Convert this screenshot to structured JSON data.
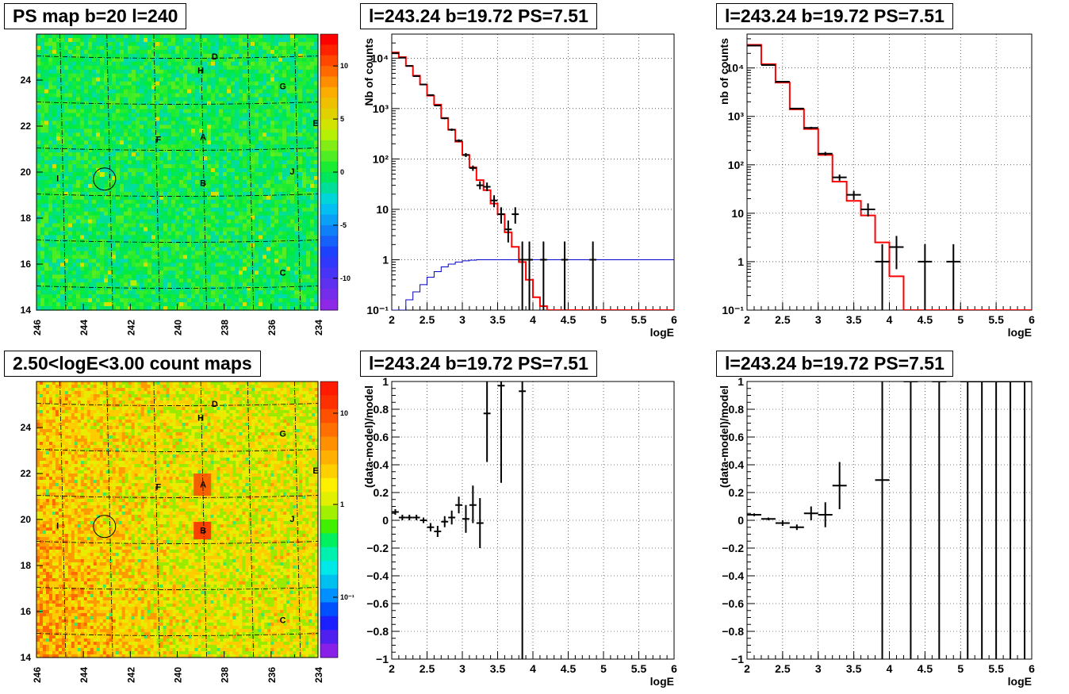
{
  "colors": {
    "model_line": "#ff0000",
    "aux_line": "#0000cc",
    "data": "#000000",
    "grid": "#000000"
  },
  "maps": [
    {
      "title": "PS map b=20 l=240",
      "kind": "ps",
      "x_range": [
        246,
        234
      ],
      "y_range": [
        14,
        26
      ],
      "x_ticks": [
        "246",
        "244",
        "242",
        "240",
        "238",
        "236",
        "234"
      ],
      "y_ticks": [
        "16",
        "18",
        "20",
        "22",
        "24"
      ],
      "z_ticks": [
        "10",
        "5",
        "0",
        "-5",
        "-10"
      ],
      "z_range": [
        -13,
        13
      ],
      "circle": {
        "l": 243.1,
        "b": 19.7
      },
      "labels": [
        {
          "t": "D",
          "l": 238.4,
          "b": 24.9
        },
        {
          "t": "H",
          "l": 239.0,
          "b": 24.3
        },
        {
          "t": "G",
          "l": 235.5,
          "b": 23.6
        },
        {
          "t": "E",
          "l": 234.1,
          "b": 22.0
        },
        {
          "t": "F",
          "l": 240.8,
          "b": 21.3
        },
        {
          "t": "A",
          "l": 238.9,
          "b": 21.4
        },
        {
          "t": "I",
          "l": 245.1,
          "b": 19.6
        },
        {
          "t": "J",
          "l": 235.1,
          "b": 19.9
        },
        {
          "t": "B",
          "l": 238.9,
          "b": 19.4
        },
        {
          "t": "C",
          "l": 235.5,
          "b": 15.5
        }
      ]
    },
    {
      "title": "2.50<logE<3.00 count maps",
      "kind": "count",
      "x_range": [
        246,
        234
      ],
      "y_range": [
        14,
        26
      ],
      "x_ticks": [
        "246",
        "244",
        "242",
        "240",
        "238",
        "236",
        "234"
      ],
      "y_ticks": [
        "16",
        "18",
        "20",
        "22",
        "24"
      ],
      "z_ticks": [
        "10",
        "1",
        "10⁻¹"
      ],
      "circle": {
        "l": 243.1,
        "b": 19.7
      },
      "labels": [
        {
          "t": "D",
          "l": 238.4,
          "b": 24.9
        },
        {
          "t": "H",
          "l": 239.0,
          "b": 24.3
        },
        {
          "t": "G",
          "l": 235.5,
          "b": 23.6
        },
        {
          "t": "E",
          "l": 234.1,
          "b": 22.0
        },
        {
          "t": "F",
          "l": 240.8,
          "b": 21.3
        },
        {
          "t": "A",
          "l": 238.9,
          "b": 21.4
        },
        {
          "t": "I",
          "l": 245.1,
          "b": 19.6
        },
        {
          "t": "J",
          "l": 235.1,
          "b": 19.9
        },
        {
          "t": "B",
          "l": 238.9,
          "b": 19.4
        },
        {
          "t": "C",
          "l": 235.5,
          "b": 15.5
        }
      ]
    }
  ],
  "chart_data": [
    {
      "type": "line",
      "title": "l=243.24 b=19.72 PS=7.51",
      "xlabel": "logE",
      "ylabel": "Nb of counts",
      "xlim": [
        2,
        6
      ],
      "ylim": [
        0.1,
        30000
      ],
      "yscale": "log",
      "grid": true,
      "x_ticks": [
        "2",
        "2.5",
        "3",
        "3.5",
        "4",
        "4.5",
        "5",
        "5.5",
        "6"
      ],
      "y_ticks": [
        {
          "v": 10000,
          "t": "10⁴"
        },
        {
          "v": 1000,
          "t": "10³"
        },
        {
          "v": 100,
          "t": "10²"
        },
        {
          "v": 10,
          "t": "10"
        },
        {
          "v": 1,
          "t": "1"
        },
        {
          "v": 0.1,
          "t": "10⁻¹"
        }
      ],
      "model": {
        "edges": [
          2.0,
          2.1,
          2.2,
          2.3,
          2.4,
          2.5,
          2.6,
          2.7,
          2.8,
          2.9,
          3.0,
          3.1,
          3.2,
          3.3,
          3.4,
          3.5,
          3.6,
          3.7,
          3.8,
          3.9,
          4.0,
          4.1,
          4.2,
          6.0
        ],
        "values": [
          13000,
          10500,
          7000,
          4500,
          3000,
          1800,
          1200,
          650,
          380,
          220,
          120,
          68,
          38,
          24,
          13,
          8,
          3.5,
          1.8,
          0.9,
          0.4,
          0.18,
          0.12,
          0.1
        ]
      },
      "aux": {
        "edges": [
          2.0,
          2.1,
          2.2,
          2.3,
          2.4,
          2.5,
          2.6,
          2.7,
          2.8,
          2.9,
          3.0,
          3.1,
          3.2,
          3.4,
          6.0
        ],
        "values": [
          0.06,
          0.1,
          0.16,
          0.23,
          0.32,
          0.45,
          0.58,
          0.72,
          0.82,
          0.9,
          0.95,
          0.98,
          1.0,
          1.0
        ]
      },
      "points": [
        {
          "x": 2.05,
          "y": 12500,
          "lo": 12300,
          "hi": 12700,
          "xe": 0.05
        },
        {
          "x": 2.15,
          "y": 10200,
          "lo": 10000,
          "hi": 10400,
          "xe": 0.05
        },
        {
          "x": 2.25,
          "y": 7000,
          "lo": 6900,
          "hi": 7100,
          "xe": 0.05
        },
        {
          "x": 2.35,
          "y": 4400,
          "lo": 4330,
          "hi": 4470,
          "xe": 0.05
        },
        {
          "x": 2.45,
          "y": 3000,
          "lo": 2950,
          "hi": 3050,
          "xe": 0.05
        },
        {
          "x": 2.55,
          "y": 1850,
          "lo": 1810,
          "hi": 1890,
          "xe": 0.05
        },
        {
          "x": 2.65,
          "y": 1150,
          "lo": 1120,
          "hi": 1180,
          "xe": 0.05
        },
        {
          "x": 2.75,
          "y": 640,
          "lo": 615,
          "hi": 665,
          "xe": 0.05
        },
        {
          "x": 2.85,
          "y": 380,
          "lo": 360,
          "hi": 400,
          "xe": 0.05
        },
        {
          "x": 2.95,
          "y": 230,
          "lo": 215,
          "hi": 245,
          "xe": 0.05
        },
        {
          "x": 3.05,
          "y": 120,
          "lo": 109,
          "hi": 131,
          "xe": 0.05
        },
        {
          "x": 3.15,
          "y": 66,
          "lo": 58,
          "hi": 74,
          "xe": 0.05
        },
        {
          "x": 3.25,
          "y": 30,
          "lo": 25,
          "hi": 36,
          "xe": 0.05
        },
        {
          "x": 3.35,
          "y": 28,
          "lo": 23,
          "hi": 34,
          "xe": 0.05
        },
        {
          "x": 3.45,
          "y": 15,
          "lo": 11,
          "hi": 19,
          "xe": 0.05
        },
        {
          "x": 3.55,
          "y": 8,
          "lo": 5.2,
          "hi": 11,
          "xe": 0.05
        },
        {
          "x": 3.65,
          "y": 4,
          "lo": 2.2,
          "hi": 6,
          "xe": 0.05
        },
        {
          "x": 3.75,
          "y": 8,
          "lo": 5.2,
          "hi": 11,
          "xe": 0.05
        },
        {
          "x": 3.85,
          "y": 1,
          "lo": 0.1,
          "hi": 2.3,
          "xe": 0.05
        },
        {
          "x": 3.95,
          "y": 1,
          "lo": 0.1,
          "hi": 2.3,
          "xe": 0.05
        },
        {
          "x": 4.15,
          "y": 1,
          "lo": 0.1,
          "hi": 2.3,
          "xe": 0.05
        },
        {
          "x": 4.45,
          "y": 1,
          "lo": 0.1,
          "hi": 2.3,
          "xe": 0.05
        },
        {
          "x": 4.85,
          "y": 1,
          "lo": 0.1,
          "hi": 2.3,
          "xe": 0.05
        }
      ]
    },
    {
      "type": "line",
      "title": "l=243.24 b=19.72 PS=7.51",
      "xlabel": "logE",
      "ylabel": "nb of counts",
      "xlim": [
        2,
        6
      ],
      "ylim": [
        0.1,
        50000
      ],
      "yscale": "log",
      "grid": true,
      "x_ticks": [
        "2",
        "2.5",
        "3",
        "3.5",
        "4",
        "4.5",
        "5",
        "5.5",
        "6"
      ],
      "y_ticks": [
        {
          "v": 10000,
          "t": "10⁴"
        },
        {
          "v": 1000,
          "t": "10³"
        },
        {
          "v": 100,
          "t": "10²"
        },
        {
          "v": 10,
          "t": "10"
        },
        {
          "v": 1,
          "t": "1"
        },
        {
          "v": 0.1,
          "t": "10⁻¹"
        }
      ],
      "model": {
        "edges": [
          2.0,
          2.2,
          2.4,
          2.6,
          2.8,
          3.0,
          3.2,
          3.4,
          3.6,
          3.8,
          4.0,
          4.2,
          6.0
        ],
        "values": [
          30000,
          12000,
          5000,
          1400,
          550,
          160,
          45,
          18,
          9,
          2.5,
          0.5,
          0.1
        ]
      },
      "points": [
        {
          "x": 2.1,
          "y": 29000,
          "lo": 28700,
          "hi": 29300,
          "xe": 0.1
        },
        {
          "x": 2.3,
          "y": 11500,
          "lo": 11300,
          "hi": 11700,
          "xe": 0.1
        },
        {
          "x": 2.5,
          "y": 5200,
          "lo": 5080,
          "hi": 5320,
          "xe": 0.1
        },
        {
          "x": 2.7,
          "y": 1450,
          "lo": 1400,
          "hi": 1500,
          "xe": 0.1
        },
        {
          "x": 2.9,
          "y": 580,
          "lo": 550,
          "hi": 610,
          "xe": 0.1
        },
        {
          "x": 3.1,
          "y": 170,
          "lo": 155,
          "hi": 185,
          "xe": 0.1
        },
        {
          "x": 3.3,
          "y": 55,
          "lo": 47,
          "hi": 63,
          "xe": 0.1
        },
        {
          "x": 3.5,
          "y": 24,
          "lo": 19,
          "hi": 29,
          "xe": 0.1
        },
        {
          "x": 3.7,
          "y": 12,
          "lo": 8.6,
          "hi": 16,
          "xe": 0.1
        },
        {
          "x": 3.9,
          "y": 1,
          "lo": 0.1,
          "hi": 2.3,
          "xe": 0.1
        },
        {
          "x": 4.1,
          "y": 2,
          "lo": 0.7,
          "hi": 3.4,
          "xe": 0.1
        },
        {
          "x": 4.5,
          "y": 1,
          "lo": 0.1,
          "hi": 2.3,
          "xe": 0.1
        },
        {
          "x": 4.9,
          "y": 1,
          "lo": 0.1,
          "hi": 2.3,
          "xe": 0.1
        }
      ]
    },
    {
      "type": "scatter",
      "title": "l=243.24 b=19.72 PS=7.51",
      "xlabel": "logE",
      "ylabel": "(data-model)/model",
      "xlim": [
        2,
        6
      ],
      "ylim": [
        -1,
        1
      ],
      "yscale": "linear",
      "grid": true,
      "x_ticks": [
        "2",
        "2.5",
        "3",
        "3.5",
        "4",
        "4.5",
        "5",
        "5.5",
        "6"
      ],
      "y_ticks": [
        {
          "v": 1,
          "t": "1"
        },
        {
          "v": 0.8,
          "t": "0.8"
        },
        {
          "v": 0.6,
          "t": "0.6"
        },
        {
          "v": 0.4,
          "t": "0.4"
        },
        {
          "v": 0.2,
          "t": "0.2"
        },
        {
          "v": 0,
          "t": "0"
        },
        {
          "v": -0.2,
          "t": "−0.2"
        },
        {
          "v": -0.4,
          "t": "−0.4"
        },
        {
          "v": -0.6,
          "t": "−0.6"
        },
        {
          "v": -0.8,
          "t": "−0.8"
        },
        {
          "v": -1,
          "t": "−1"
        }
      ],
      "points": [
        {
          "x": 2.05,
          "y": 0.06,
          "lo": 0.04,
          "hi": 0.08,
          "xe": 0.05
        },
        {
          "x": 2.15,
          "y": 0.02,
          "lo": 0.0,
          "hi": 0.04,
          "xe": 0.05
        },
        {
          "x": 2.25,
          "y": 0.02,
          "lo": 0.0,
          "hi": 0.04,
          "xe": 0.05
        },
        {
          "x": 2.35,
          "y": 0.02,
          "lo": 0.0,
          "hi": 0.04,
          "xe": 0.05
        },
        {
          "x": 2.45,
          "y": 0.0,
          "lo": -0.02,
          "hi": 0.02,
          "xe": 0.05
        },
        {
          "x": 2.55,
          "y": -0.05,
          "lo": -0.08,
          "hi": -0.02,
          "xe": 0.05
        },
        {
          "x": 2.65,
          "y": -0.08,
          "lo": -0.12,
          "hi": -0.04,
          "xe": 0.05
        },
        {
          "x": 2.75,
          "y": -0.01,
          "lo": -0.05,
          "hi": 0.03,
          "xe": 0.05
        },
        {
          "x": 2.85,
          "y": 0.02,
          "lo": -0.03,
          "hi": 0.07,
          "xe": 0.05
        },
        {
          "x": 2.95,
          "y": 0.11,
          "lo": 0.05,
          "hi": 0.17,
          "xe": 0.05
        },
        {
          "x": 3.05,
          "y": 0.01,
          "lo": -0.09,
          "hi": 0.11,
          "xe": 0.05
        },
        {
          "x": 3.15,
          "y": 0.11,
          "lo": -0.02,
          "hi": 0.25,
          "xe": 0.05
        },
        {
          "x": 3.25,
          "y": -0.02,
          "lo": -0.2,
          "hi": 0.16,
          "xe": 0.05
        },
        {
          "x": 3.35,
          "y": 0.77,
          "lo": 0.42,
          "hi": 1.0,
          "xe": 0.05
        },
        {
          "x": 3.55,
          "y": 0.97,
          "lo": 0.27,
          "hi": 1.0,
          "xe": 0.05
        },
        {
          "x": 3.85,
          "y": 0.93,
          "lo": -1.0,
          "hi": 1.0,
          "xe": 0.05
        }
      ]
    },
    {
      "type": "scatter",
      "title": "l=243.24 b=19.72 PS=7.51",
      "xlabel": "logE",
      "ylabel": "(data-model)/model",
      "xlim": [
        2,
        6
      ],
      "ylim": [
        -1,
        1
      ],
      "yscale": "linear",
      "grid": true,
      "x_ticks": [
        "2",
        "2.5",
        "3",
        "3.5",
        "4",
        "4.5",
        "5",
        "5.5",
        "6"
      ],
      "y_ticks": [
        {
          "v": 1,
          "t": "1"
        },
        {
          "v": 0.8,
          "t": "0.8"
        },
        {
          "v": 0.6,
          "t": "0.6"
        },
        {
          "v": 0.4,
          "t": "0.4"
        },
        {
          "v": 0.2,
          "t": "0.2"
        },
        {
          "v": 0,
          "t": "0"
        },
        {
          "v": -0.2,
          "t": "−0.2"
        },
        {
          "v": -0.4,
          "t": "−0.4"
        },
        {
          "v": -0.6,
          "t": "−0.6"
        },
        {
          "v": -0.8,
          "t": "−0.8"
        },
        {
          "v": -1,
          "t": "−1"
        }
      ],
      "points": [
        {
          "x": 2.1,
          "y": 0.04,
          "lo": 0.03,
          "hi": 0.05,
          "xe": 0.1
        },
        {
          "x": 2.3,
          "y": 0.01,
          "lo": 0.0,
          "hi": 0.02,
          "xe": 0.1
        },
        {
          "x": 2.5,
          "y": -0.02,
          "lo": -0.04,
          "hi": 0.0,
          "xe": 0.1
        },
        {
          "x": 2.7,
          "y": -0.05,
          "lo": -0.07,
          "hi": -0.03,
          "xe": 0.1
        },
        {
          "x": 2.9,
          "y": 0.05,
          "lo": 0.0,
          "hi": 0.1,
          "xe": 0.1
        },
        {
          "x": 3.1,
          "y": 0.04,
          "lo": -0.05,
          "hi": 0.13,
          "xe": 0.1
        },
        {
          "x": 3.3,
          "y": 0.25,
          "lo": 0.08,
          "hi": 0.42,
          "xe": 0.1
        },
        {
          "x": 3.9,
          "y": 0.29,
          "lo": -1.0,
          "hi": 1.0,
          "xe": 0.1
        },
        {
          "x": 4.3,
          "y": 1.0,
          "lo": -1.0,
          "hi": 1.0,
          "xe": 0.1
        },
        {
          "x": 4.7,
          "y": 1.0,
          "lo": -1.0,
          "hi": 1.0,
          "xe": 0.1
        },
        {
          "x": 5.1,
          "y": 1.0,
          "lo": -1.0,
          "hi": 1.0,
          "xe": 0.1
        },
        {
          "x": 5.3,
          "y": 1.0,
          "lo": -1.0,
          "hi": 1.0,
          "xe": 0.1
        },
        {
          "x": 5.5,
          "y": 1.0,
          "lo": -1.0,
          "hi": 1.0,
          "xe": 0.1
        },
        {
          "x": 5.7,
          "y": 1.0,
          "lo": -1.0,
          "hi": 1.0,
          "xe": 0.1
        },
        {
          "x": 5.9,
          "y": 1.0,
          "lo": -1.0,
          "hi": 1.0,
          "xe": 0.1
        }
      ]
    }
  ]
}
